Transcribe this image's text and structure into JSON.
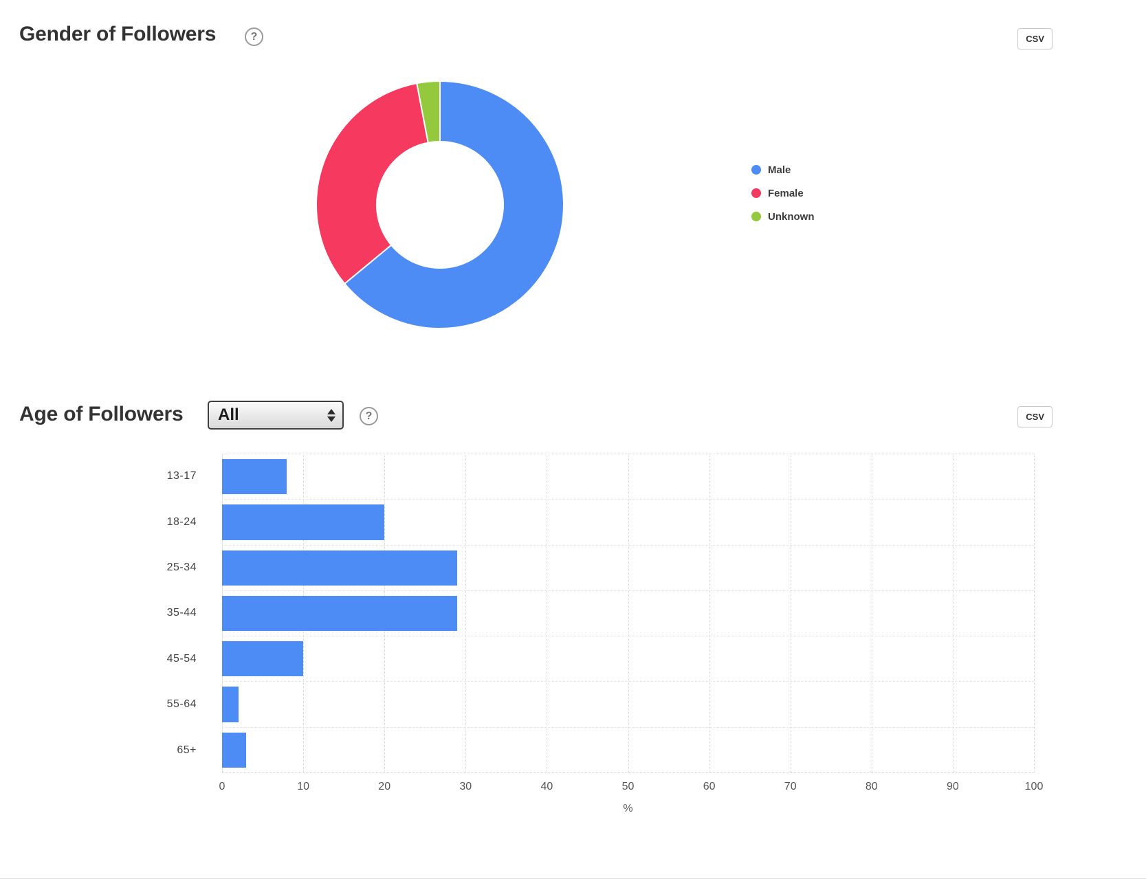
{
  "gender_section": {
    "title": "Gender of Followers",
    "help_icon": "?",
    "csv_button": "CSV",
    "legend": [
      {
        "label": "Male",
        "color": "#4E8CF5"
      },
      {
        "label": "Female",
        "color": "#F5395F"
      },
      {
        "label": "Unknown",
        "color": "#94C83D"
      }
    ]
  },
  "age_section": {
    "title": "Age of Followers",
    "filter_dropdown": {
      "selected": "All"
    },
    "help_icon": "?",
    "csv_button": "CSV"
  },
  "chart_data": [
    {
      "type": "pie",
      "title": "Gender of Followers",
      "donut": true,
      "labels": [
        "Male",
        "Female",
        "Unknown"
      ],
      "values": [
        64,
        33,
        3
      ],
      "colors": [
        "#4E8CF5",
        "#F5395F",
        "#94C83D"
      ],
      "legend_position": "right"
    },
    {
      "type": "bar",
      "title": "Age of Followers",
      "orientation": "horizontal",
      "categories": [
        "13-17",
        "18-24",
        "25-34",
        "35-44",
        "45-54",
        "55-64",
        "65+"
      ],
      "values": [
        8,
        20,
        29,
        29,
        10,
        2,
        3
      ],
      "bar_color": "#4E8CF5",
      "xlabel": "%",
      "xlim": [
        0,
        100
      ],
      "xticks": [
        0,
        10,
        20,
        30,
        40,
        50,
        60,
        70,
        80,
        90,
        100
      ],
      "grid": "dotted"
    }
  ]
}
